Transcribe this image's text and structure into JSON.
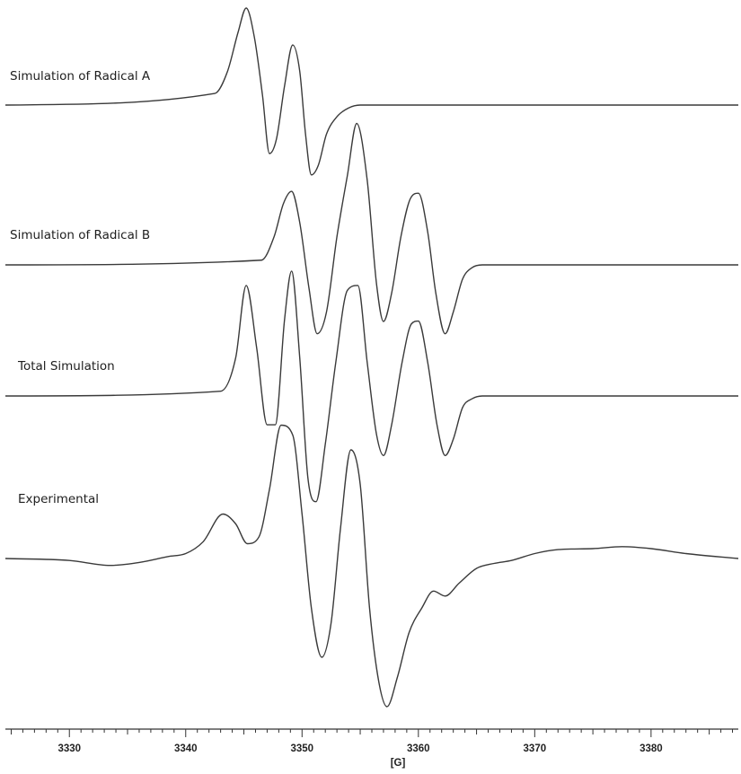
{
  "chart_data": {
    "type": "line",
    "title": "",
    "xlabel": "[G]",
    "ylabel": "",
    "xlim": [
      3324.5,
      3387.5
    ],
    "x_ticks": [
      3330,
      3340,
      3350,
      3360,
      3370,
      3380
    ],
    "grid": false,
    "legend": "none",
    "series": [
      {
        "name": "Simulation of Radical A",
        "x": [
          3324.5,
          3342.5,
          3343.6,
          3344.5,
          3345.2,
          3345.9,
          3346.6,
          3347.2,
          3347.8,
          3348.5,
          3349.2,
          3349.8,
          3350.3,
          3350.8,
          3351.4,
          3352.1,
          3353.0,
          3354.0,
          3355.0,
          3356.5,
          3387.5
        ],
        "y": [
          0,
          0.12,
          0.35,
          0.75,
          1.0,
          0.7,
          0.1,
          -0.5,
          -0.35,
          0.2,
          0.62,
          0.35,
          -0.3,
          -0.72,
          -0.62,
          -0.3,
          -0.12,
          -0.03,
          0.0,
          0.0,
          0
        ]
      },
      {
        "name": "Simulation of Radical B",
        "x": [
          3324.5,
          3346.5,
          3347.6,
          3348.4,
          3349.1,
          3349.8,
          3350.6,
          3351.3,
          3352.1,
          3353.0,
          3353.9,
          3354.7,
          3355.6,
          3356.4,
          3357.0,
          3357.7,
          3358.5,
          3359.3,
          3360.0,
          3360.8,
          3361.5,
          3362.3,
          3363.0,
          3363.8,
          3364.6,
          3365.5,
          3387.5
        ],
        "y": [
          0,
          0.05,
          0.3,
          0.65,
          0.78,
          0.45,
          -0.25,
          -0.73,
          -0.5,
          0.3,
          0.95,
          1.5,
          0.9,
          -0.2,
          -0.6,
          -0.3,
          0.3,
          0.7,
          0.76,
          0.35,
          -0.3,
          -0.73,
          -0.5,
          -0.15,
          -0.03,
          0.0,
          0
        ]
      },
      {
        "name": "Total Simulation",
        "x": [
          3324.5,
          3343.0,
          3344.3,
          3345.2,
          3346.1,
          3347.0,
          3347.7,
          3348.5,
          3349.1,
          3349.8,
          3350.5,
          3351.2,
          3352.0,
          3352.9,
          3353.9,
          3354.8,
          3355.6,
          3356.4,
          3357.0,
          3357.7,
          3358.6,
          3359.4,
          3360.0,
          3360.8,
          3361.6,
          3362.3,
          3363.0,
          3363.8,
          3364.6,
          3365.5,
          3387.5
        ],
        "y": [
          0,
          0.05,
          0.4,
          1.15,
          0.5,
          -0.3,
          -0.3,
          0.8,
          1.3,
          0.4,
          -0.85,
          -1.1,
          -0.5,
          0.35,
          1.1,
          1.15,
          0.35,
          -0.4,
          -0.62,
          -0.3,
          0.35,
          0.75,
          0.78,
          0.35,
          -0.3,
          -0.62,
          -0.45,
          -0.12,
          -0.03,
          0.0,
          0
        ]
      },
      {
        "name": "Experimental",
        "x": [
          3324.5,
          3330.0,
          3333.5,
          3336.0,
          3338.5,
          3340.0,
          3341.5,
          3343.2,
          3344.3,
          3345.3,
          3346.3,
          3347.2,
          3348.2,
          3349.2,
          3350.0,
          3350.8,
          3351.7,
          3352.5,
          3353.3,
          3354.2,
          3355.0,
          3355.8,
          3356.6,
          3357.3,
          3358.2,
          3359.2,
          3360.3,
          3361.3,
          3362.3,
          3363.5,
          3365.0,
          3366.5,
          3368.0,
          3370.0,
          3372.0,
          3375.0,
          3377.5,
          3380.0,
          3383.0,
          3387.5
        ],
        "y": [
          0,
          -0.02,
          -0.07,
          -0.04,
          0.02,
          0.05,
          0.17,
          0.45,
          0.35,
          0.15,
          0.22,
          0.7,
          1.35,
          1.25,
          0.45,
          -0.5,
          -1.0,
          -0.65,
          0.3,
          1.1,
          0.75,
          -0.5,
          -1.25,
          -1.5,
          -1.2,
          -0.75,
          -0.5,
          -0.33,
          -0.38,
          -0.25,
          -0.1,
          -0.05,
          -0.02,
          0.05,
          0.09,
          0.1,
          0.12,
          0.1,
          0.05,
          0.0
        ]
      }
    ]
  }
}
